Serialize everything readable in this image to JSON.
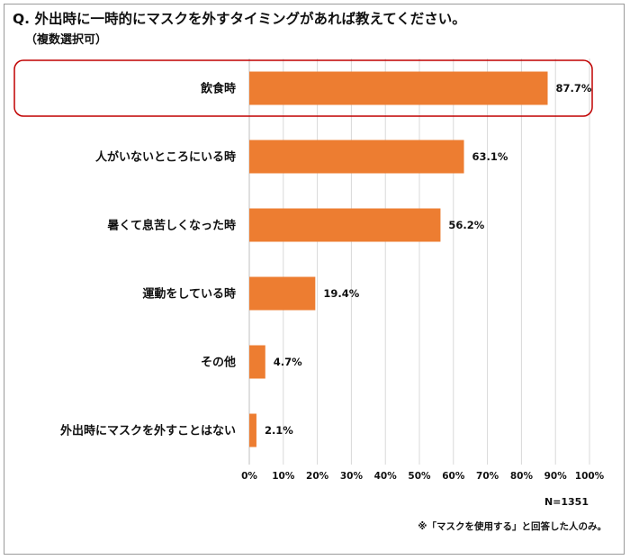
{
  "header": {
    "title": "Q. 外出時に一時的にマスクを外すタイミングがあれば教えてください。",
    "subtitle": "（複数選択可）"
  },
  "notes": {
    "sample": "N=1351",
    "footnote": "※「マスクを使用する」と回答した人のみ。"
  },
  "chart_data": {
    "type": "bar",
    "orientation": "horizontal",
    "categories": [
      "飲食時",
      "人がいないところにいる時",
      "暑くて息苦しくなった時",
      "運動をしている時",
      "その他",
      "外出時にマスクを外すことはない"
    ],
    "values": [
      87.7,
      63.1,
      56.2,
      19.4,
      4.7,
      2.1
    ],
    "value_labels": [
      "87.7%",
      "63.1%",
      "56.2%",
      "19.4%",
      "4.7%",
      "2.1%"
    ],
    "xlim": [
      0,
      100
    ],
    "ticks": [
      0,
      10,
      20,
      30,
      40,
      50,
      60,
      70,
      80,
      90,
      100
    ],
    "tick_labels": [
      "0%",
      "10%",
      "20%",
      "30%",
      "40%",
      "50%",
      "60%",
      "70%",
      "80%",
      "90%",
      "100%"
    ],
    "grid": true,
    "highlighted_category": "飲食時",
    "colors": {
      "bar": "#ed7d31",
      "grid": "#d9d9d9",
      "highlight": "#c00000"
    }
  }
}
